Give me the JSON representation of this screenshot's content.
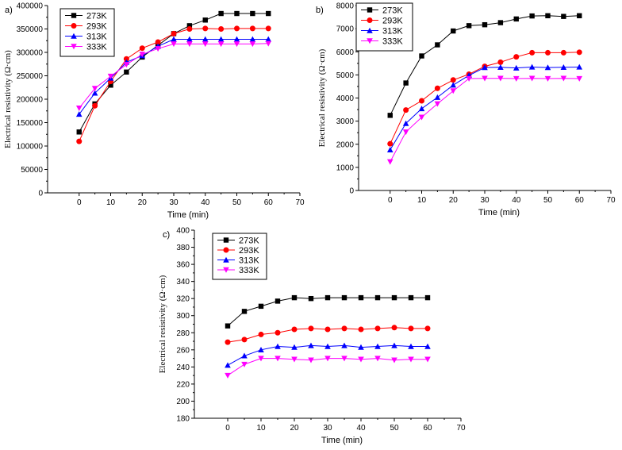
{
  "colors": {
    "273K": "#000000",
    "293K": "#ff0000",
    "313K": "#0000ff",
    "333K": "#ff00ff"
  },
  "chart_data": [
    {
      "panel": "a)",
      "type": "line",
      "xlabel": "Time (min)",
      "ylabel": "Electrical resistivity (Ω·cm)",
      "x": [
        0,
        5,
        10,
        15,
        20,
        25,
        30,
        35,
        40,
        45,
        50,
        55,
        60
      ],
      "xlim": [
        -10,
        70
      ],
      "xticks": [
        0,
        10,
        20,
        30,
        40,
        50,
        60,
        70
      ],
      "ylim": [
        0,
        400000
      ],
      "yticks": [
        0,
        50000,
        100000,
        150000,
        200000,
        250000,
        300000,
        350000,
        400000
      ],
      "legend_position": "top-left",
      "series": [
        {
          "name": "273K",
          "marker": "square",
          "color": "#000000",
          "values": [
            130000,
            190000,
            230000,
            258000,
            290000,
            315000,
            340000,
            357000,
            369000,
            383000,
            383000,
            383000,
            383000
          ]
        },
        {
          "name": "293K",
          "marker": "circle",
          "color": "#ff0000",
          "values": [
            110000,
            186000,
            238000,
            286000,
            309000,
            322000,
            340000,
            350000,
            351000,
            350000,
            351000,
            351000,
            351000
          ]
        },
        {
          "name": "313K",
          "marker": "triangle-up",
          "color": "#0000ff",
          "values": [
            168000,
            213000,
            245000,
            279000,
            293000,
            313000,
            328000,
            328000,
            328000,
            328000,
            328000,
            328000,
            328000
          ]
        },
        {
          "name": "333K",
          "marker": "triangle-down",
          "color": "#ff00ff",
          "values": [
            181000,
            223000,
            249000,
            274000,
            296000,
            308000,
            318000,
            318000,
            318000,
            318000,
            318000,
            318000,
            319000
          ]
        }
      ]
    },
    {
      "panel": "b)",
      "type": "line",
      "xlabel": "Time (min)",
      "ylabel": "Electrical resistivity (Ω·cm)",
      "x": [
        0,
        5,
        10,
        15,
        20,
        25,
        30,
        35,
        40,
        45,
        50,
        55,
        60
      ],
      "xlim": [
        -10,
        70
      ],
      "xticks": [
        0,
        10,
        20,
        30,
        40,
        50,
        60,
        70
      ],
      "ylim": [
        0,
        8000
      ],
      "yticks": [
        0,
        1000,
        2000,
        3000,
        4000,
        5000,
        6000,
        7000,
        8000
      ],
      "legend_position": "top-left",
      "series": [
        {
          "name": "273K",
          "marker": "square",
          "color": "#000000",
          "values": [
            3250,
            4650,
            5820,
            6300,
            6900,
            7130,
            7170,
            7260,
            7420,
            7550,
            7560,
            7530,
            7560
          ]
        },
        {
          "name": "293K",
          "marker": "circle",
          "color": "#ff0000",
          "values": [
            2020,
            3480,
            3880,
            4420,
            4780,
            5030,
            5370,
            5550,
            5780,
            5960,
            5960,
            5960,
            5980
          ]
        },
        {
          "name": "313K",
          "marker": "triangle-up",
          "color": "#0000ff",
          "values": [
            1760,
            2900,
            3540,
            4030,
            4560,
            4980,
            5320,
            5330,
            5300,
            5340,
            5320,
            5330,
            5340
          ]
        },
        {
          "name": "333K",
          "marker": "triangle-down",
          "color": "#ff00ff",
          "values": [
            1240,
            2530,
            3170,
            3750,
            4310,
            4840,
            4850,
            4850,
            4840,
            4850,
            4840,
            4850,
            4840
          ]
        }
      ]
    },
    {
      "panel": "c)",
      "type": "line",
      "xlabel": "Time (min)",
      "ylabel": "Electrical resistivity (Ω·cm)",
      "x": [
        0,
        5,
        10,
        15,
        20,
        25,
        30,
        35,
        40,
        45,
        50,
        55,
        60
      ],
      "xlim": [
        -10,
        70
      ],
      "xticks": [
        0,
        10,
        20,
        30,
        40,
        50,
        60,
        70
      ],
      "ylim": [
        180,
        400
      ],
      "yticks": [
        180,
        200,
        220,
        240,
        260,
        280,
        300,
        320,
        340,
        360,
        380,
        400
      ],
      "legend_position": "top-left",
      "series": [
        {
          "name": "273K",
          "marker": "square",
          "color": "#000000",
          "values": [
            288,
            305,
            311,
            317,
            321,
            320,
            321,
            321,
            321,
            321,
            321,
            321,
            321
          ]
        },
        {
          "name": "293K",
          "marker": "circle",
          "color": "#ff0000",
          "values": [
            269,
            272,
            278,
            280,
            284,
            285,
            284,
            285,
            284,
            285,
            286,
            285,
            285
          ]
        },
        {
          "name": "313K",
          "marker": "triangle-up",
          "color": "#0000ff",
          "values": [
            242,
            253,
            260,
            264,
            263,
            265,
            264,
            265,
            263,
            264,
            265,
            264,
            264
          ]
        },
        {
          "name": "333K",
          "marker": "triangle-down",
          "color": "#ff00ff",
          "values": [
            230,
            243,
            250,
            250,
            249,
            248,
            250,
            250,
            249,
            250,
            248,
            249,
            249
          ]
        }
      ]
    }
  ]
}
